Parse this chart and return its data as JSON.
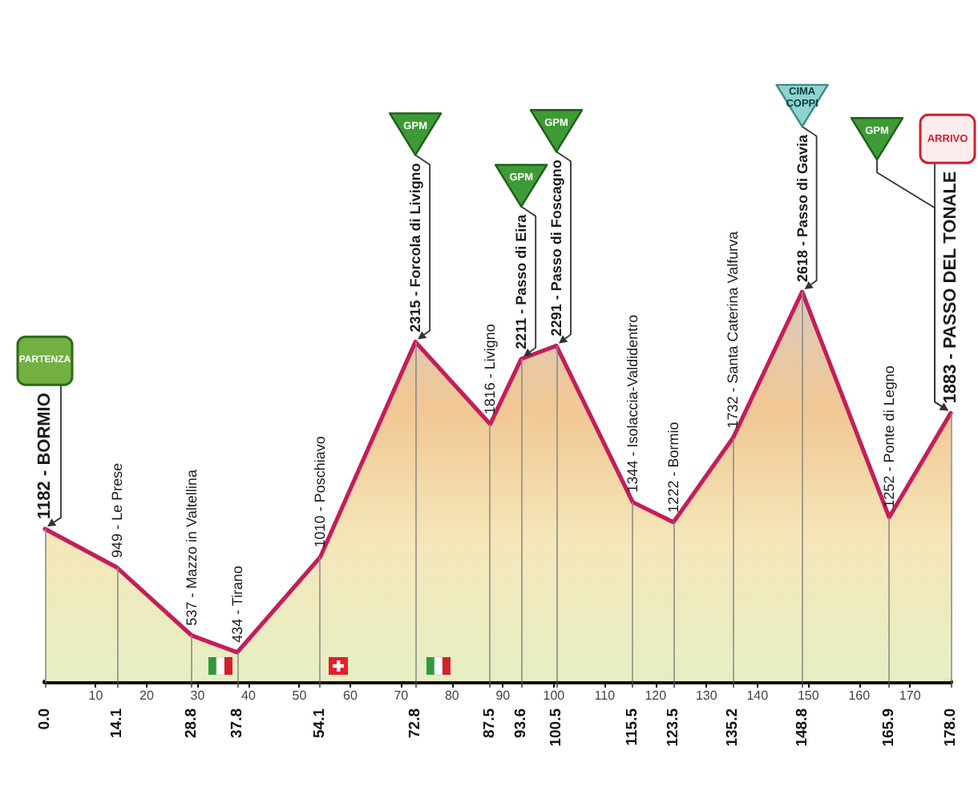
{
  "chart_data": {
    "type": "area",
    "x": [
      0,
      14.1,
      28.8,
      37.8,
      54.1,
      72.8,
      87.5,
      93.6,
      100.5,
      115.5,
      123.5,
      135.2,
      148.8,
      165.9,
      178
    ],
    "values": [
      1182,
      949,
      537,
      434,
      1010,
      2315,
      1816,
      2211,
      2291,
      1344,
      1222,
      1732,
      2618,
      1252,
      1883
    ],
    "color": "#c41e5a",
    "value_labels": [
      "1182 - BORMIO",
      "949 - Le Prese",
      "537 - Mazzo in Valtellina",
      "434 - Tirano",
      "1010 - Poschiavo",
      "2315 - Forcola di Livigno",
      "1816 - Livigno",
      "2211 - Passo di Eira",
      "2291 - Passo di Foscagno",
      "1344 - Isolaccia-Valdidentro",
      "1222 - Bormio",
      "1732 - Santa Caterina Valfurva",
      "2618 - Passo di Gavia",
      "1252 - Ponte di Legno",
      "1883 - PASSO DEL TONALE"
    ],
    "xlim": [
      0,
      178
    ],
    "xticks": [
      {
        "value": 0,
        "label": "0.0"
      },
      14.1,
      28.8,
      37.8,
      54.1,
      72.8,
      87.5,
      93.6,
      100.5,
      115.5,
      123.5,
      135.2,
      148.8,
      165.9,
      {
        "value": 178,
        "label": "178.0"
      }
    ],
    "x2lim": [
      0,
      178
    ],
    "x2ticks": [
      10,
      20,
      30,
      40,
      50,
      60,
      70,
      80,
      90,
      100,
      110,
      120,
      130,
      140,
      150,
      160,
      170
    ],
    "tick_labels": "x",
    "grid": "x",
    "annotations": [
      {
        "text": "PARTENZA",
        "x": 0,
        "y": 1182
      },
      {
        "text": "GPM",
        "x": 72.8,
        "y": 2315
      },
      {
        "text": "GPM",
        "x": 93.6,
        "y": 2211
      },
      {
        "text": "GPM",
        "x": 100.5,
        "y": 2291
      },
      {
        "text": "CIMA COPPI",
        "x": 148.8,
        "y": 2618
      },
      {
        "text": "GPM",
        "x": 178,
        "y": 1883
      },
      {
        "text": "ARRIVO",
        "x": 178,
        "y": 1883
      }
    ]
  }
}
